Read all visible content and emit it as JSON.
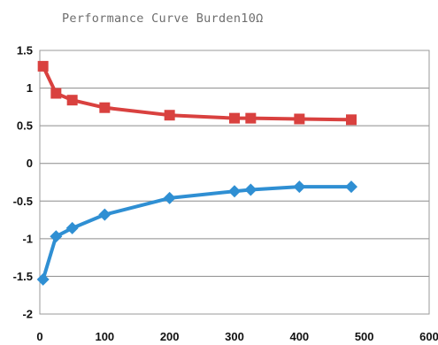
{
  "chart_data": {
    "type": "line",
    "title": "Performance Curve  Burden10Ω",
    "xlabel": "",
    "ylabel": "",
    "xlim": [
      0,
      600
    ],
    "ylim": [
      -2,
      1.5
    ],
    "xticks": [
      0,
      100,
      200,
      300,
      400,
      500,
      600
    ],
    "yticks": [
      1.5,
      1,
      0.5,
      0,
      -0.5,
      -1,
      -1.5,
      -2
    ],
    "xtick_labels": [
      "0",
      "100",
      "200",
      "300",
      "400",
      "500",
      "600"
    ],
    "ytick_labels": [
      "1.5",
      "1",
      "0.5",
      "0",
      "-0.5",
      "-1",
      "-1.5",
      "-2"
    ],
    "grid": true,
    "legend": "none",
    "series": [
      {
        "color": "#d9413f",
        "marker": "square",
        "x": [
          5,
          25,
          50,
          100,
          200,
          300,
          325,
          400,
          480
        ],
        "y": [
          1.29,
          0.93,
          0.84,
          0.74,
          0.64,
          0.6,
          0.6,
          0.59,
          0.58
        ]
      },
      {
        "color": "#2f8fd3",
        "marker": "diamond",
        "x": [
          5,
          25,
          50,
          100,
          200,
          300,
          325,
          400,
          480
        ],
        "y": [
          -1.54,
          -0.97,
          -0.86,
          -0.68,
          -0.46,
          -0.37,
          -0.35,
          -0.31,
          -0.31
        ]
      }
    ]
  }
}
